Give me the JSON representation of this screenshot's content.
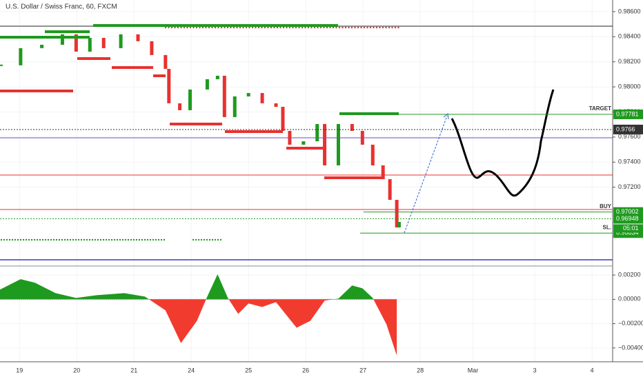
{
  "chart_data": {
    "type": "candlestick",
    "title": "U.S. Dollar / Swiss Franc, 60, FXCM",
    "x": [
      -0.34,
      0.02,
      0.39,
      0.75,
      0.99,
      1.23,
      1.47,
      1.77,
      2.07,
      2.31,
      2.55,
      2.61,
      2.8,
      2.98,
      3.28,
      3.46,
      3.58,
      3.76,
      4.0,
      4.24,
      4.48,
      4.6,
      4.72,
      4.96,
      5.2,
      5.33,
      5.57,
      5.81,
      5.99,
      6.17,
      6.35,
      6.47,
      6.59,
      6.63
    ],
    "close": [
      0.98172,
      0.98309,
      0.98336,
      0.98419,
      0.98281,
      0.98391,
      0.98309,
      0.98419,
      0.98364,
      0.98254,
      0.98144,
      0.97869,
      0.97814,
      0.97979,
      0.98061,
      0.98089,
      0.97759,
      0.97924,
      0.97951,
      0.97869,
      0.97841,
      0.97649,
      0.97539,
      0.97566,
      0.97704,
      0.97374,
      0.97704,
      0.97649,
      0.97539,
      0.97374,
      0.97264,
      0.97099,
      0.96879,
      0.96923
    ],
    "up_color": "#1e9a1e",
    "down_color": "#e8312f",
    "xlim": [
      -0.34,
      10.36
    ],
    "xticks": [
      {
        "value": 0,
        "label": "19"
      },
      {
        "value": 1,
        "label": "20"
      },
      {
        "value": 2,
        "label": "21"
      },
      {
        "value": 3,
        "label": "24"
      },
      {
        "value": 4,
        "label": "25"
      },
      {
        "value": 5,
        "label": "26"
      },
      {
        "value": 6,
        "label": "27"
      },
      {
        "value": 7,
        "label": "28"
      },
      {
        "value": 7.92,
        "label": "Mar"
      },
      {
        "value": 9,
        "label": "3"
      },
      {
        "value": 10,
        "label": "4"
      }
    ],
    "ylim": [
      0.96577,
      0.98693
    ],
    "yticks": [
      {
        "value": 0.986,
        "label": "0.98600"
      },
      {
        "value": 0.984,
        "label": "0.98400"
      },
      {
        "value": 0.982,
        "label": "0.98200"
      },
      {
        "value": 0.98,
        "label": "0.98000"
      },
      {
        "value": 0.978,
        "label": "0.97800"
      },
      {
        "value": 0.976,
        "label": "0.97600"
      },
      {
        "value": 0.974,
        "label": "0.97400"
      },
      {
        "value": 0.972,
        "label": "0.97200"
      }
    ],
    "levels": [
      {
        "value": 0.97781,
        "color": "#1e9a1e",
        "tag": "TARGET",
        "start": 5.6
      },
      {
        "value": 0.9766,
        "color": "#333333",
        "start": -0.34
      },
      {
        "value": 0.97002,
        "color": "#1e9a1e",
        "tag": "BUY",
        "start": 6.01
      },
      {
        "value": 0.96948,
        "color": "#1e9a1e",
        "start": -0.34
      },
      {
        "value": 0.96834,
        "color": "#1e9a1e",
        "tag": "SL.",
        "start": 5.95
      }
    ],
    "countdown": "05:01",
    "oscillator": {
      "x": [
        -0.34,
        0.02,
        0.27,
        0.63,
        0.99,
        1.35,
        1.83,
        2.19,
        2.55,
        2.82,
        3.1,
        3.28,
        3.46,
        3.64,
        3.82,
        4.0,
        4.24,
        4.48,
        4.84,
        5.08,
        5.33,
        5.57,
        5.81,
        5.99,
        6.17,
        6.41,
        6.59
      ],
      "values": [
        0.0008,
        0.00166,
        0.00137,
        0.00051,
        0.00011,
        0.00034,
        0.00051,
        0.00023,
        -0.00091,
        -0.0036,
        -0.00177,
        0.00023,
        0.00206,
        0.00011,
        -0.0012,
        -0.00034,
        -0.00063,
        -0.00023,
        -0.00234,
        -0.00177,
        -0.00011,
        6e-05,
        0.00114,
        0.00091,
        0.00011,
        -0.00206,
        -0.00463
      ],
      "pos_color": "#1e9a1e",
      "neg_color": "#f23b2f",
      "ylim": [
        -0.00514,
        0.00263
      ],
      "yticks": [
        {
          "value": 0.002,
          "label": "0.00200"
        },
        {
          "value": 0,
          "label": "0.00000"
        },
        {
          "value": -0.002,
          "label": "−0.00200"
        },
        {
          "value": -0.004,
          "label": "−0.00400"
        }
      ]
    }
  }
}
